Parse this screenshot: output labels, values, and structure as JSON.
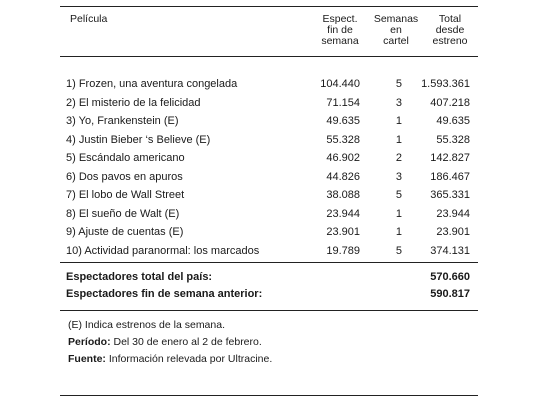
{
  "table": {
    "headers": {
      "pelicula": "Película",
      "espect": [
        "Espect.",
        "fin de",
        "semana"
      ],
      "semanas": [
        "Semanas",
        "en",
        "cartel"
      ],
      "total": [
        "Total",
        "desde",
        "estreno"
      ]
    },
    "rows": [
      {
        "title": "1) Frozen, una aventura congelada",
        "weekend": "104.440",
        "weeks": "5",
        "total": "1.593.361"
      },
      {
        "title": "2) El misterio de la felicidad",
        "weekend": "71.154",
        "weeks": "3",
        "total": "407.218"
      },
      {
        "title": "3) Yo, Frankenstein (E)",
        "weekend": "49.635",
        "weeks": "1",
        "total": "49.635"
      },
      {
        "title": "4) Justin Bieber ‘s Believe (E)",
        "weekend": "55.328",
        "weeks": "1",
        "total": "55.328"
      },
      {
        "title": "5) Escándalo americano",
        "weekend": "46.902",
        "weeks": "2",
        "total": "142.827"
      },
      {
        "title": "6) Dos pavos en apuros",
        "weekend": "44.826",
        "weeks": "3",
        "total": "186.467"
      },
      {
        "title": "7) El lobo de Wall Street",
        "weekend": "38.088",
        "weeks": "5",
        "total": "365.331"
      },
      {
        "title": "8) El sueño de Walt (E)",
        "weekend": "23.944",
        "weeks": "1",
        "total": "23.944"
      },
      {
        "title": "9) Ajuste de cuentas (E)",
        "weekend": "23.901",
        "weeks": "1",
        "total": "23.901"
      },
      {
        "title": "10) Actividad paranormal: los marcados",
        "weekend": "19.789",
        "weeks": "5",
        "total": "374.131"
      }
    ],
    "totals": [
      {
        "label": "Espectadores total del país:",
        "value": "570.660"
      },
      {
        "label": "Espectadores fin de semana anterior:",
        "value": "590.817"
      }
    ]
  },
  "notes": {
    "estrenos": "(E) Indica estrenos de la semana.",
    "periodo_label": "Período:",
    "periodo_text": " Del 30 de enero al 2 de febrero.",
    "fuente_label": "Fuente:",
    "fuente_text": " Información relevada por Ultracine."
  }
}
